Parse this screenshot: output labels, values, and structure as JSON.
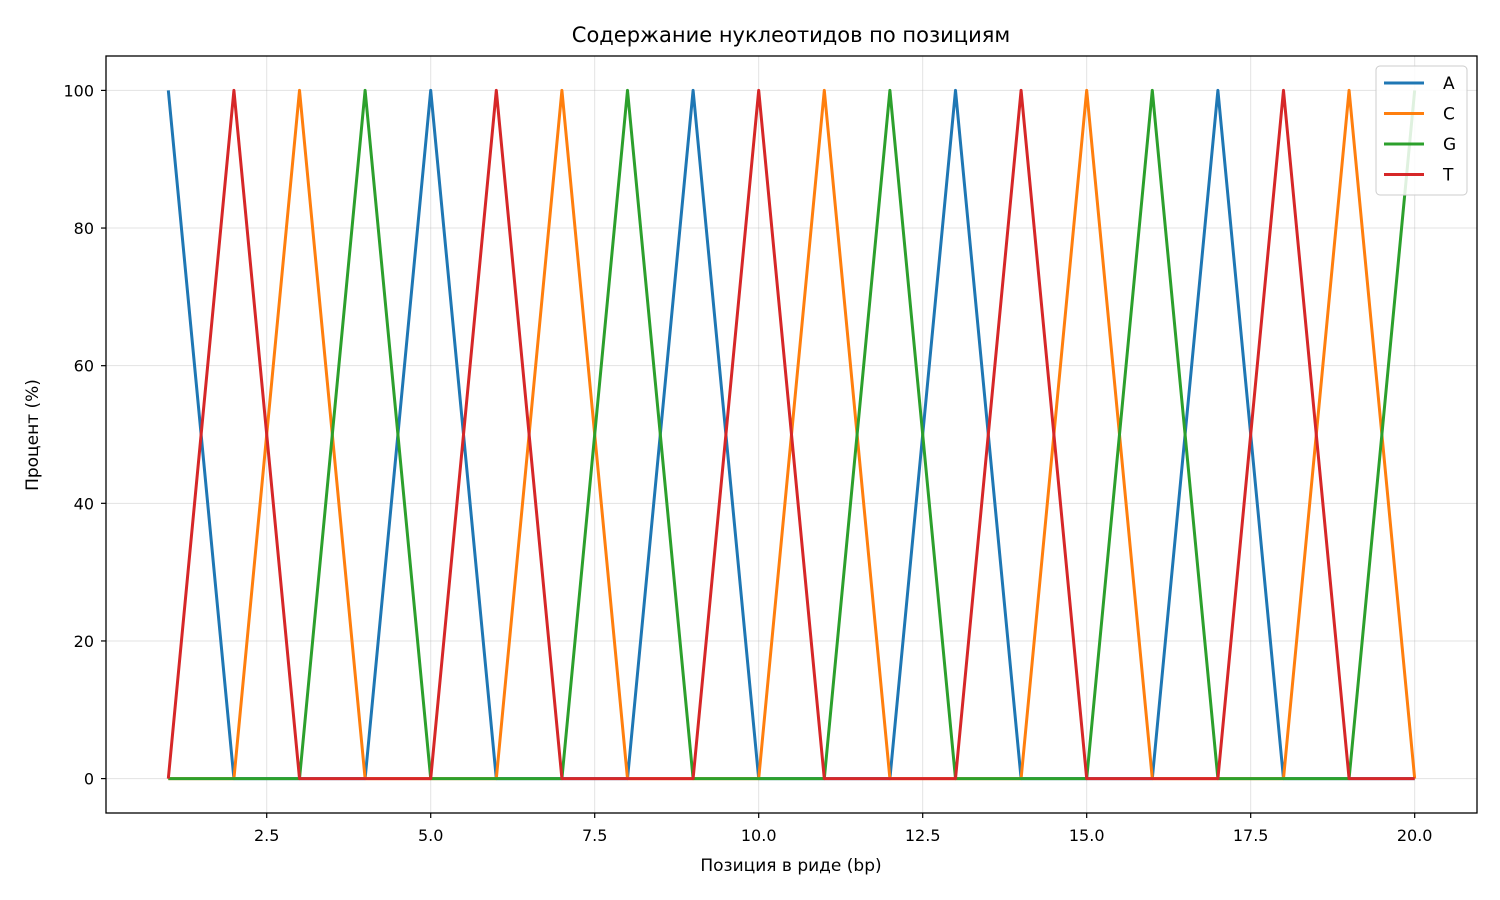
{
  "chart_data": {
    "type": "line",
    "title": "Содержание нуклеотидов по позициям",
    "xlabel": "Позиция в риде (bp)",
    "ylabel": "Процент (%)",
    "xlim": [
      0.05,
      20.95
    ],
    "ylim": [
      -5,
      105
    ],
    "x_ticks": [
      2.5,
      5.0,
      7.5,
      10.0,
      12.5,
      15.0,
      17.5,
      20.0
    ],
    "x_tick_labels": [
      "2.5",
      "5.0",
      "7.5",
      "10.0",
      "12.5",
      "15.0",
      "17.5",
      "20.0"
    ],
    "y_ticks": [
      0,
      20,
      40,
      60,
      80,
      100
    ],
    "y_tick_labels": [
      "0",
      "20",
      "40",
      "60",
      "80",
      "100"
    ],
    "grid": true,
    "legend_position": "top-right",
    "x": [
      1,
      2,
      3,
      4,
      5,
      6,
      7,
      8,
      9,
      10,
      11,
      12,
      13,
      14,
      15,
      16,
      17,
      18,
      19,
      20
    ],
    "series": [
      {
        "name": "A",
        "color": "#1f77b4",
        "values": [
          100,
          0,
          0,
          0,
          100,
          0,
          0,
          0,
          100,
          0,
          0,
          0,
          100,
          0,
          0,
          0,
          100,
          0,
          0,
          0
        ]
      },
      {
        "name": "C",
        "color": "#ff7f0e",
        "values": [
          0,
          0,
          100,
          0,
          0,
          0,
          100,
          0,
          0,
          0,
          100,
          0,
          0,
          0,
          100,
          0,
          0,
          0,
          100,
          0
        ]
      },
      {
        "name": "G",
        "color": "#2ca02c",
        "values": [
          0,
          0,
          0,
          100,
          0,
          0,
          0,
          100,
          0,
          0,
          0,
          100,
          0,
          0,
          0,
          100,
          0,
          0,
          0,
          100
        ]
      },
      {
        "name": "T",
        "color": "#d62728",
        "values": [
          0,
          100,
          0,
          0,
          0,
          100,
          0,
          0,
          0,
          100,
          0,
          0,
          0,
          100,
          0,
          0,
          0,
          100,
          0,
          0
        ]
      }
    ]
  }
}
